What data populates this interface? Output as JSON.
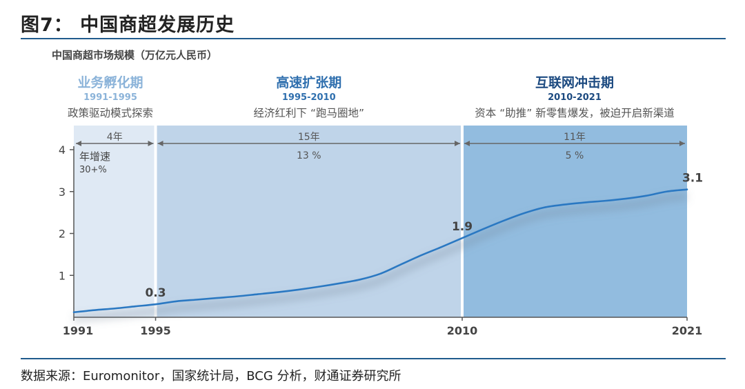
{
  "figure": {
    "title": "图7：  中国商超发展历史",
    "source": "数据来源：Euromonitor，国家统计局，BCG 分析，财通证券研究所"
  },
  "chart_data": {
    "type": "line",
    "ylabel": "中国商超市场规模（万亿元人民币）",
    "xlabel": "",
    "xlim": [
      1991,
      2021
    ],
    "ylim": [
      0,
      4
    ],
    "y_ticks": [
      "1",
      "2",
      "3",
      "4"
    ],
    "x_ticks": [
      {
        "value": 1991,
        "label": "1991"
      },
      {
        "value": 1995,
        "label": "1995"
      },
      {
        "value": 2010,
        "label": "2010"
      },
      {
        "value": 2021,
        "label": "2021"
      }
    ],
    "series": [
      {
        "points": [
          [
            1991,
            0.12
          ],
          [
            1992,
            0.17
          ],
          [
            1993,
            0.21
          ],
          [
            1994,
            0.26
          ],
          [
            1995,
            0.31
          ],
          [
            1996,
            0.38
          ],
          [
            1997,
            0.42
          ],
          [
            1998,
            0.46
          ],
          [
            1999,
            0.5
          ],
          [
            2000,
            0.55
          ],
          [
            2001,
            0.6
          ],
          [
            2002,
            0.66
          ],
          [
            2003,
            0.73
          ],
          [
            2004,
            0.81
          ],
          [
            2005,
            0.9
          ],
          [
            2006,
            1.04
          ],
          [
            2007,
            1.26
          ],
          [
            2008,
            1.48
          ],
          [
            2009,
            1.68
          ],
          [
            2010,
            1.89
          ],
          [
            2011,
            2.1
          ],
          [
            2012,
            2.3
          ],
          [
            2013,
            2.48
          ],
          [
            2014,
            2.62
          ],
          [
            2015,
            2.69
          ],
          [
            2016,
            2.74
          ],
          [
            2017,
            2.78
          ],
          [
            2018,
            2.83
          ],
          [
            2019,
            2.9
          ],
          [
            2020,
            3.0
          ],
          [
            2021,
            3.05
          ]
        ]
      }
    ],
    "annotations": [
      {
        "x": 1995,
        "y": 0.31,
        "label": "0.3"
      },
      {
        "x": 2010,
        "y": 1.89,
        "label": "1.9"
      },
      {
        "x": 2021,
        "y": 3.05,
        "label": "3.1"
      }
    ],
    "phases": [
      {
        "name": "业务孵化期",
        "years": "1991-1995",
        "desc": "政策驱动模式探索",
        "start": 1991,
        "end": 1995,
        "duration": "4年",
        "growth_title": "年增速",
        "growth": "30+%",
        "color": "#dfe9f4",
        "title_color": "#8bb3d9"
      },
      {
        "name": "高速扩张期",
        "years": "1995-2010",
        "desc": "经济红利下 “跑马圈地”",
        "start": 1995,
        "end": 2010,
        "duration": "15年",
        "growth": "13 %",
        "color": "#bfd4e9",
        "title_color": "#2f6fae"
      },
      {
        "name": "互联网冲击期",
        "years": "2010-2021",
        "desc": "资本 “助推” 新零售爆发，被迫开启新渠道",
        "start": 2010,
        "end": 2021,
        "duration": "11年",
        "growth": "5 %",
        "color": "#92bcdf",
        "title_color": "#1c4a80"
      }
    ],
    "line_color": "#2a78c2",
    "grid": false,
    "legend": "none"
  }
}
